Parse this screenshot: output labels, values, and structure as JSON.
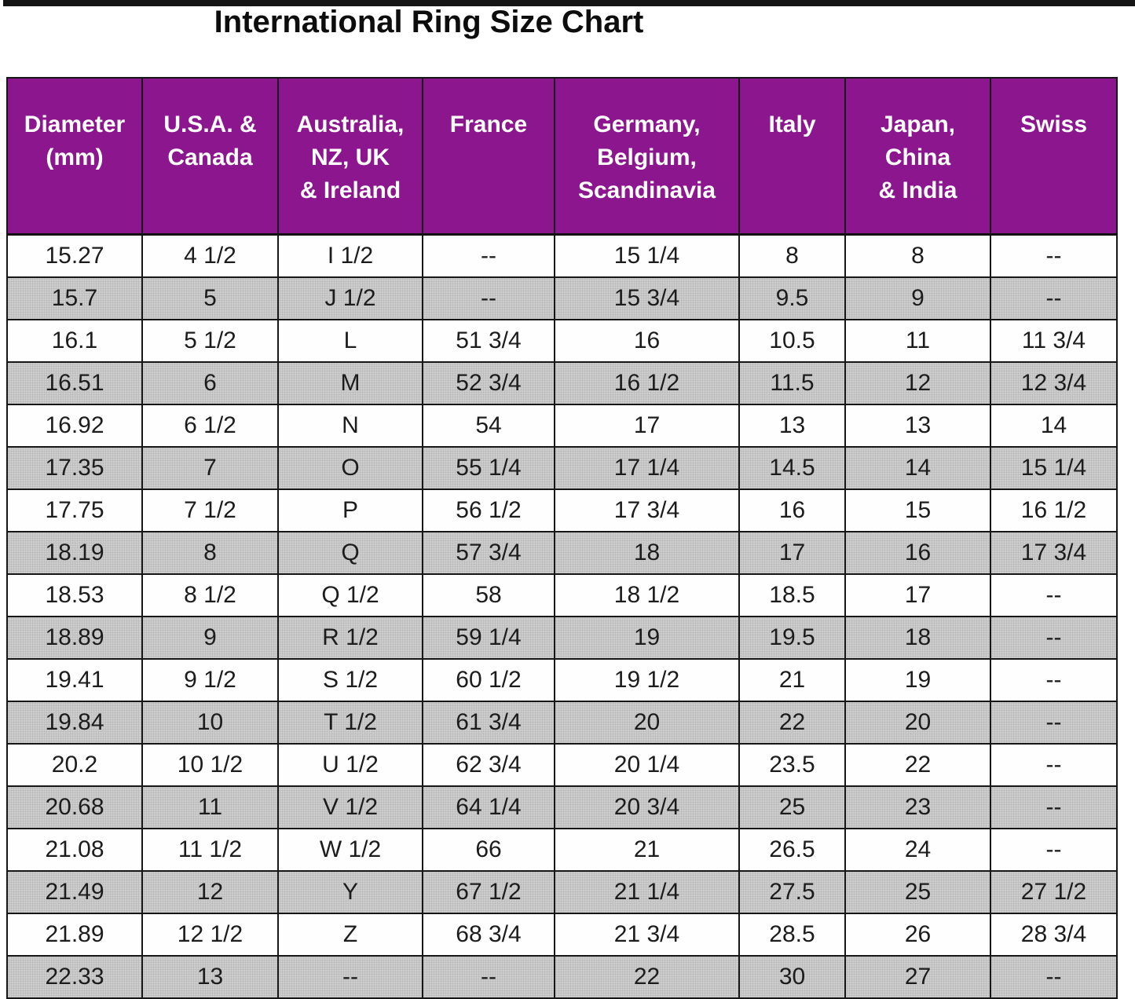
{
  "title": "International Ring Size Chart",
  "chart_data": {
    "type": "table",
    "title": "International Ring Size Chart",
    "columns": [
      "Diameter (mm)",
      "U.S.A. & Canada",
      "Australia, NZ, UK & Ireland",
      "France",
      "Germany, Belgium, Scandinavia",
      "Italy",
      "Japan, China & India",
      "Swiss"
    ],
    "rows": [
      [
        "15.27",
        "4 1/2",
        "I 1/2",
        "--",
        "15 1/4",
        "8",
        "8",
        "--"
      ],
      [
        "15.7",
        "5",
        "J 1/2",
        "--",
        "15 3/4",
        "9.5",
        "9",
        "--"
      ],
      [
        "16.1",
        "5 1/2",
        "L",
        "51 3/4",
        "16",
        "10.5",
        "11",
        "11 3/4"
      ],
      [
        "16.51",
        "6",
        "M",
        "52 3/4",
        "16 1/2",
        "11.5",
        "12",
        "12 3/4"
      ],
      [
        "16.92",
        "6 1/2",
        "N",
        "54",
        "17",
        "13",
        "13",
        "14"
      ],
      [
        "17.35",
        "7",
        "O",
        "55 1/4",
        "17 1/4",
        "14.5",
        "14",
        "15 1/4"
      ],
      [
        "17.75",
        "7 1/2",
        "P",
        "56 1/2",
        "17 3/4",
        "16",
        "15",
        "16 1/2"
      ],
      [
        "18.19",
        "8",
        "Q",
        "57 3/4",
        "18",
        "17",
        "16",
        "17 3/4"
      ],
      [
        "18.53",
        "8 1/2",
        "Q 1/2",
        "58",
        "18 1/2",
        "18.5",
        "17",
        "--"
      ],
      [
        "18.89",
        "9",
        "R 1/2",
        "59 1/4",
        "19",
        "19.5",
        "18",
        "--"
      ],
      [
        "19.41",
        "9 1/2",
        "S 1/2",
        "60 1/2",
        "19 1/2",
        "21",
        "19",
        "--"
      ],
      [
        "19.84",
        "10",
        "T 1/2",
        "61 3/4",
        "20",
        "22",
        "20",
        "--"
      ],
      [
        "20.2",
        "10 1/2",
        "U 1/2",
        "62 3/4",
        "20 1/4",
        "23.5",
        "22",
        "--"
      ],
      [
        "20.68",
        "11",
        "V 1/2",
        "64 1/4",
        "20 3/4",
        "25",
        "23",
        "--"
      ],
      [
        "21.08",
        "11 1/2",
        "W 1/2",
        "66",
        "21",
        "26.5",
        "24",
        "--"
      ],
      [
        "21.49",
        "12",
        "Y",
        "67 1/2",
        "21 1/4",
        "27.5",
        "25",
        "27 1/2"
      ],
      [
        "21.89",
        "12 1/2",
        "Z",
        "68 3/4",
        "21 3/4",
        "28.5",
        "26",
        "28 3/4"
      ],
      [
        "22.33",
        "13",
        "--",
        "--",
        "22",
        "30",
        "27",
        "--"
      ]
    ],
    "layout": {
      "header_position": "top",
      "grid": true,
      "alternating_row_shading": "every second row shaded gray starting with row 2"
    }
  },
  "table": {
    "columns": [
      {
        "label": "Diameter\n(mm)"
      },
      {
        "label": "U.S.A. &\nCanada"
      },
      {
        "label": "Australia,\nNZ, UK\n& Ireland"
      },
      {
        "label": "France"
      },
      {
        "label": "Germany,\nBelgium,\nScandinavia"
      },
      {
        "label": "Italy"
      },
      {
        "label": "Japan,\nChina\n& India"
      },
      {
        "label": "Swiss"
      }
    ]
  },
  "colors": {
    "header_bg": "#8C168E",
    "header_text": "#FFFFFF",
    "row_bg": "#FEFEFE",
    "row_alt_bg": "#CDCDCD",
    "border": "#161616",
    "title_text": "#0D0D0D"
  }
}
